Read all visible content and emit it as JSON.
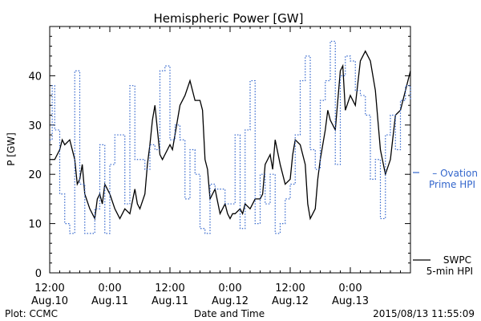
{
  "chart_data": {
    "type": "line",
    "title": "Hemispheric Power [GW]",
    "ylabel": "P [GW]",
    "xlabel": "Date and Time",
    "ylim": [
      0,
      50
    ],
    "yticks": [
      0,
      10,
      20,
      30,
      40
    ],
    "xlim": [
      0,
      72
    ],
    "xtick_positions": [
      0,
      12,
      24,
      36,
      48,
      60
    ],
    "xtick_labels": [
      {
        "time": "12:00",
        "date": "Aug.10"
      },
      {
        "time": "0:00",
        "date": "Aug.11"
      },
      {
        "time": "12:00",
        "date": "Aug.11"
      },
      {
        "time": "0:00",
        "date": "Aug.12"
      },
      {
        "time": "12:00",
        "date": "Aug.12"
      },
      {
        "time": "0:00",
        "date": "Aug.13"
      }
    ],
    "footer_left": "Plot: CCMC",
    "footer_right": "2015/08/13 11:55:09",
    "series": [
      {
        "name": "SWPC 5-min HPI",
        "legend_lines": [
          "SWPC",
          "5-min HPI"
        ],
        "color": "#000000",
        "style": "solid",
        "x": [
          0,
          1,
          2,
          2.5,
          3,
          4,
          5,
          5.5,
          6,
          6.5,
          7,
          8,
          9,
          9.5,
          10,
          10.5,
          11,
          12,
          13,
          14,
          15,
          16,
          17,
          17.5,
          18,
          19,
          19.5,
          20,
          20.5,
          21,
          22,
          22.5,
          23,
          24,
          24.5,
          25,
          26,
          27,
          28,
          29,
          30,
          30.5,
          31,
          31.5,
          32,
          33,
          34,
          35,
          35.5,
          36,
          36.5,
          37,
          38,
          38.5,
          39,
          40,
          41,
          42,
          42.5,
          43,
          44,
          44.5,
          45,
          46,
          47,
          48,
          48.5,
          49,
          50,
          51,
          51.5,
          52,
          53,
          53.5,
          54,
          55,
          55.5,
          56,
          57,
          58,
          58.5,
          59,
          60,
          61,
          62,
          63,
          64,
          65,
          65.5,
          66,
          67,
          68,
          69,
          70,
          71,
          72
        ],
        "y": [
          23,
          23,
          25,
          27,
          26,
          27,
          23,
          18,
          19,
          22,
          16,
          13,
          11,
          15,
          16,
          14,
          18,
          16,
          13,
          11,
          13,
          12,
          17,
          14,
          13,
          16,
          22,
          26,
          31,
          34,
          24,
          23,
          24,
          26,
          25,
          28,
          34,
          36,
          39,
          35,
          35,
          33,
          23,
          21,
          15,
          17,
          12,
          14,
          12,
          11,
          12,
          12,
          13,
          12,
          14,
          13,
          15,
          15,
          16,
          22,
          24,
          21,
          27,
          22,
          18,
          19,
          24,
          27,
          26,
          22,
          14,
          11,
          13,
          19,
          23,
          29,
          33,
          31,
          29,
          41,
          42,
          33,
          36,
          34,
          43,
          45,
          43,
          37,
          31,
          25,
          20,
          23,
          32,
          33,
          37,
          41
        ]
      },
      {
        "name": "Ovation Prime HPI",
        "legend_lines": [
          "Ovation",
          "Prime HPI"
        ],
        "color": "#3366cc",
        "style": "dotted",
        "x": [
          0,
          0.5,
          1,
          2,
          3,
          4,
          5,
          6,
          7,
          8,
          9,
          10,
          11,
          12,
          13,
          14,
          15,
          16,
          17,
          18,
          19,
          20,
          21,
          22,
          23,
          24,
          25,
          26,
          27,
          28,
          29,
          30,
          31,
          32,
          33,
          34,
          35,
          36,
          37,
          38,
          39,
          40,
          41,
          42,
          43,
          44,
          45,
          46,
          47,
          48,
          49,
          50,
          51,
          52,
          53,
          54,
          55,
          56,
          57,
          58,
          59,
          60,
          61,
          62,
          63,
          64,
          65,
          66,
          67,
          68,
          69,
          70,
          71,
          72
        ],
        "y": [
          27,
          38,
          29,
          16,
          10,
          8,
          41,
          18,
          8,
          8,
          13,
          26,
          8,
          22,
          28,
          28,
          14,
          38,
          23,
          23,
          21,
          26,
          25,
          41,
          42,
          27,
          30,
          27,
          15,
          25,
          20,
          9,
          8,
          18,
          17,
          17,
          14,
          14,
          28,
          9,
          29,
          39,
          10,
          20,
          14,
          20,
          8,
          10,
          15,
          18,
          28,
          39,
          44,
          25,
          21,
          35,
          39,
          47,
          22,
          40,
          44,
          43,
          37,
          36,
          32,
          19,
          23,
          11,
          28,
          32,
          25,
          35,
          38,
          35
        ]
      }
    ]
  }
}
